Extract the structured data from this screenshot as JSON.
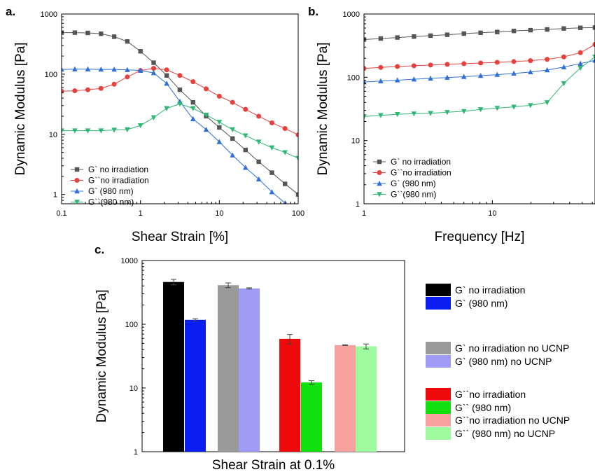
{
  "chart_data": [
    {
      "panel": "a.",
      "type": "line",
      "xlabel": "Shear Strain [%]",
      "ylabel": "Dynamic Modulus [Pa]",
      "xscale": "log",
      "yscale": "log",
      "xlim": [
        0.1,
        100
      ],
      "ylim": [
        0.7,
        1000
      ],
      "xticks": [
        "0.1",
        "1",
        "10",
        "100"
      ],
      "yticks": [
        "1",
        "10",
        "100",
        "1000"
      ],
      "grid": false,
      "legend_position": "bottom-left",
      "series": [
        {
          "name": "G` no irradiation",
          "color": "#555555",
          "marker": "square",
          "x": [
            0.1,
            0.147,
            0.215,
            0.316,
            0.464,
            0.681,
            1.0,
            1.47,
            2.15,
            3.16,
            4.64,
            6.81,
            10.0,
            14.7,
            21.5,
            31.6,
            46.4,
            68.1,
            100
          ],
          "y": [
            490,
            490,
            485,
            470,
            420,
            350,
            240,
            155,
            95,
            55,
            34,
            20,
            13,
            8.5,
            5.5,
            3.5,
            2.3,
            1.5,
            1.0
          ]
        },
        {
          "name": "G``no irradiation",
          "color": "#e8413d",
          "marker": "circle",
          "x": [
            0.1,
            0.147,
            0.215,
            0.316,
            0.464,
            0.681,
            1.0,
            1.47,
            2.15,
            3.16,
            4.64,
            6.81,
            10.0,
            14.7,
            21.5,
            31.6,
            46.4,
            68.1,
            100
          ],
          "y": [
            52,
            53,
            55,
            58,
            68,
            90,
            115,
            125,
            118,
            95,
            75,
            57,
            43,
            34,
            26,
            20,
            15.5,
            12.5,
            9.8
          ]
        },
        {
          "name": "G` (980 nm)",
          "color": "#2e6fd8",
          "marker": "triangle-up",
          "x": [
            0.1,
            0.147,
            0.215,
            0.316,
            0.464,
            0.681,
            1.0,
            1.47,
            2.15,
            3.16,
            4.64,
            6.81,
            10.0,
            14.7,
            21.5,
            31.6,
            46.4,
            68.1
          ],
          "y": [
            120,
            121,
            121,
            120,
            120,
            118,
            115,
            105,
            70,
            35,
            18,
            12,
            7.5,
            4.5,
            2.8,
            1.8,
            1.1,
            0.72
          ]
        },
        {
          "name": "G``(980 nm)",
          "color": "#2eb873",
          "marker": "triangle-down",
          "x": [
            0.1,
            0.147,
            0.215,
            0.316,
            0.464,
            0.681,
            1.0,
            1.47,
            2.15,
            3.16,
            4.64,
            6.81,
            10.0,
            14.7,
            21.5,
            31.6,
            46.4,
            68.1,
            100
          ],
          "y": [
            11.5,
            11.5,
            11.5,
            11.5,
            11.8,
            12,
            14,
            19,
            27,
            32,
            27,
            21,
            16,
            12,
            9.5,
            7.5,
            6,
            5,
            4
          ]
        }
      ]
    },
    {
      "panel": "b.",
      "type": "line",
      "xlabel": "Frequency [Hz]",
      "ylabel": "Dynamic Modulus [Pa]",
      "xscale": "log",
      "yscale": "log",
      "xlim": [
        1,
        63
      ],
      "ylim": [
        1,
        1000
      ],
      "xticks": [
        "1",
        "10"
      ],
      "yticks": [
        "1",
        "10",
        "100",
        "1000"
      ],
      "grid": false,
      "legend_position": "bottom-left",
      "series": [
        {
          "name": "G` no irradiation",
          "color": "#555555",
          "marker": "square",
          "x": [
            1.0,
            1.35,
            1.82,
            2.45,
            3.3,
            4.45,
            6.0,
            8.1,
            10.9,
            14.7,
            19.8,
            26.7,
            36.0,
            48.5,
            63
          ],
          "y": [
            395,
            410,
            425,
            440,
            455,
            470,
            490,
            505,
            520,
            540,
            555,
            570,
            590,
            605,
            610
          ]
        },
        {
          "name": "G``no irradiation",
          "color": "#e8413d",
          "marker": "circle",
          "x": [
            1.0,
            1.35,
            1.82,
            2.45,
            3.3,
            4.45,
            6.0,
            8.1,
            10.9,
            14.7,
            19.8,
            26.7,
            36.0,
            48.5,
            63
          ],
          "y": [
            138,
            143,
            148,
            152,
            156,
            160,
            164,
            168,
            172,
            177,
            183,
            192,
            210,
            245,
            330
          ]
        },
        {
          "name": "G` (980 nm)",
          "color": "#2e6fd8",
          "marker": "triangle-up",
          "x": [
            1.0,
            1.35,
            1.82,
            2.45,
            3.3,
            4.45,
            6.0,
            8.1,
            10.9,
            14.7,
            19.8,
            26.7,
            36.0,
            48.5,
            63
          ],
          "y": [
            84,
            87,
            90,
            93,
            96,
            99,
            102,
            106,
            110,
            115,
            121,
            130,
            145,
            165,
            185
          ]
        },
        {
          "name": "G``(980 nm)",
          "color": "#2eb873",
          "marker": "triangle-down",
          "x": [
            1.0,
            1.35,
            1.82,
            2.45,
            3.3,
            4.45,
            6.0,
            8.1,
            10.9,
            14.7,
            19.8,
            26.7,
            36.0,
            48.5,
            63
          ],
          "y": [
            24,
            25,
            26,
            26.5,
            27,
            28,
            29,
            31,
            32.5,
            34,
            36,
            40,
            80,
            140,
            210
          ]
        }
      ]
    },
    {
      "panel": "c.",
      "type": "bar",
      "xlabel": "Shear Strain at 0.1%",
      "ylabel": "Dynamic Modulus [Pa]",
      "yscale": "log",
      "ylim": [
        1,
        1000
      ],
      "yticks": [
        "1",
        "10",
        "100",
        "1000"
      ],
      "grid": false,
      "legend_position": "right",
      "bars": [
        {
          "name": "G` no irradiation",
          "color": "#000000",
          "value": 460,
          "error": 45
        },
        {
          "name": "G` (980 nm)",
          "color": "#0a1ef0",
          "value": 117,
          "error": 5
        },
        {
          "name": "G` no irradiation no UCNP",
          "color": "#9a9a9a",
          "value": 410,
          "error": 35
        },
        {
          "name": "G` (980 nm) no UCNP",
          "color": "#9f9cf5",
          "value": 365,
          "error": 8
        },
        {
          "name": "G``no irradiation",
          "color": "#ee0a0a",
          "value": 59,
          "error": 10
        },
        {
          "name": "G`` (980 nm)",
          "color": "#10e010",
          "value": 12.2,
          "error": 0.8
        },
        {
          "name": "G``no irradiation no UCNP",
          "color": "#f7a0a0",
          "value": 47,
          "error": 0.6
        },
        {
          "name": "G`` (980 nm) no UCNP",
          "color": "#9dfb9d",
          "value": 45,
          "error": 4
        }
      ]
    }
  ]
}
